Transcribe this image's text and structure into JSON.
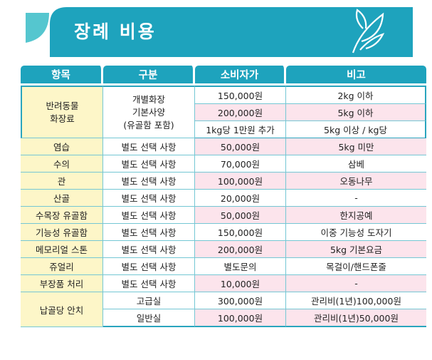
{
  "title": "장례 비용",
  "headers": [
    "항목",
    "구분",
    "소비자가",
    "비고"
  ],
  "group1": {
    "item": [
      "반려동물",
      "화장료"
    ],
    "category": [
      "개별화장",
      "기본사양",
      "(유골함 포함)"
    ],
    "rows": [
      {
        "price": "150,000원",
        "note": "2kg 이하"
      },
      {
        "price": "200,000원",
        "note": "5kg 이하"
      },
      {
        "price": "1kg당 1만원 추가",
        "note": "5kg 이상 / kg당"
      }
    ]
  },
  "rows": [
    {
      "item": "염습",
      "category": "별도 선택 사항",
      "price": "50,000원",
      "note": "5kg 미만"
    },
    {
      "item": "수의",
      "category": "별도 선택 사항",
      "price": "70,000원",
      "note": "삼베"
    },
    {
      "item": "관",
      "category": "별도 선택 사항",
      "price": "100,000원",
      "note": "오동나무"
    },
    {
      "item": "산골",
      "category": "별도 선택 사항",
      "price": "20,000원",
      "note": "-"
    },
    {
      "item": "수목장 유골함",
      "category": "별도 선택 사항",
      "price": "50,000원",
      "note": "한지공예"
    },
    {
      "item": "기능성 유골함",
      "category": "별도 선택 사항",
      "price": "150,000원",
      "note": "이중 기능성 도자기"
    },
    {
      "item": "메모리얼 스톤",
      "category": "별도 선택 사항",
      "price": "200,000원",
      "note": "5kg 기본요금"
    },
    {
      "item": "쥬얼리",
      "category": "별도 선택 사항",
      "price": "별도문의",
      "note": "목걸이/핸드폰줄"
    },
    {
      "item": "부장품 처리",
      "category": "별도 선택 사항",
      "price": "10,000원",
      "note": "-"
    }
  ],
  "group2": {
    "item": "납골당 안치",
    "rows": [
      {
        "category": "고급실",
        "price": "300,000원",
        "note": "관리비(1년)100,000원"
      },
      {
        "category": "일반실",
        "price": "100,000원",
        "note": "관리비(1년)50,000원"
      }
    ]
  },
  "colors": {
    "banner": "#1ea3bd",
    "header": "#1ea3bd",
    "item_bg": "#fdf6c8",
    "highlight": "#fce4ec"
  }
}
